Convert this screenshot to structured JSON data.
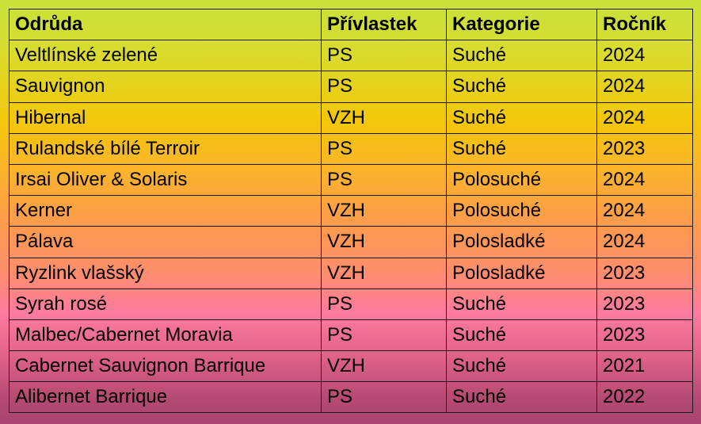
{
  "table": {
    "headers": [
      "Odrůda",
      "Přívlastek",
      "Kategorie",
      "Ročník"
    ],
    "rows": [
      [
        "Veltlínské zelené",
        "PS",
        "Suché",
        "2024"
      ],
      [
        "Sauvignon",
        "PS",
        "Suché",
        "2024"
      ],
      [
        "Hibernal",
        "VZH",
        "Suché",
        "2024"
      ],
      [
        "Rulandské bílé Terroir",
        "PS",
        "Suché",
        "2023"
      ],
      [
        "Irsai Oliver & Solaris",
        "PS",
        "Polosuché",
        "2024"
      ],
      [
        "Kerner",
        "VZH",
        "Polosuché",
        "2024"
      ],
      [
        "Pálava",
        "VZH",
        "Polosladké",
        "2024"
      ],
      [
        "Ryzlink vlašský",
        "VZH",
        "Polosladké",
        "2023"
      ],
      [
        "Syrah rosé",
        "PS",
        "Suché",
        "2023"
      ],
      [
        "Malbec/Cabernet Moravia",
        "PS",
        "Suché",
        "2023"
      ],
      [
        "Cabernet Sauvignon Barrique",
        "VZH",
        "Suché",
        "2021"
      ],
      [
        "Alibernet Barrique",
        "PS",
        "Suché",
        "2022"
      ]
    ]
  },
  "colors": {
    "gradient_top": "#c8e23c",
    "gradient_mid": "#fbb42a",
    "gradient_pink": "#fd7aa0",
    "gradient_bottom": "#a84470",
    "border": "#1a1a1a"
  }
}
